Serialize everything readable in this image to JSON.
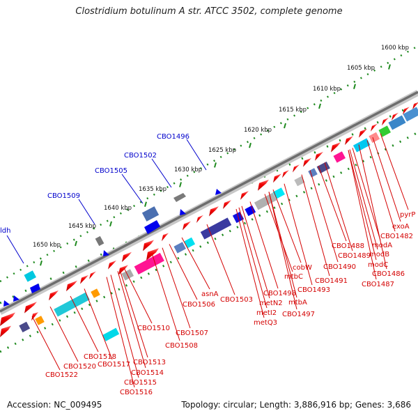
{
  "header": {
    "title": "Clostridium botulinum A str. ATCC 3502, complete genome"
  },
  "footer": {
    "accession": "Accession: NC_009495",
    "info": "Topology: circular; Length: 3,886,916 bp; Genes: 3,686"
  },
  "scale_labels": [
    "1600 kbp",
    "1605 kbp",
    "1610 kbp",
    "1615 kbp",
    "1620 kbp",
    "1625 kbp",
    "1630 kbp",
    "1635 kbp",
    "1640 kbp",
    "1645 kbp",
    "1650 kbp"
  ],
  "blue_labels": [
    "CBO1496",
    "CBO1502",
    "CBO1505",
    "CBO1509",
    "ldh"
  ],
  "red_labels": [
    "pyrP",
    "exoA",
    "CBO1482",
    "modA",
    "modB",
    "CBO1488",
    "modC",
    "CBO1489",
    "CBO1486",
    "CBO1490",
    "CBO1487",
    "cobW",
    "CBO1491",
    "mtbC",
    "CBO1493",
    "CBO1498",
    "asnA",
    "CBO1503",
    "mtbA",
    "metN2",
    "CBO1506",
    "metI2",
    "CBO1497",
    "metQ3",
    "CBO1510",
    "CBO1507",
    "CBO1508",
    "CBO1513",
    "CBO1518",
    "CBO1514",
    "CBO1520",
    "CBO1517",
    "CBO1515",
    "CBO1522",
    "CBO1516"
  ],
  "colors": {
    "gene_red": "#e8000b",
    "label_red": "#d40000",
    "label_blue": "#0000cc",
    "tick_green": "#1f8a1f",
    "backbone": "#7a7a7a"
  }
}
